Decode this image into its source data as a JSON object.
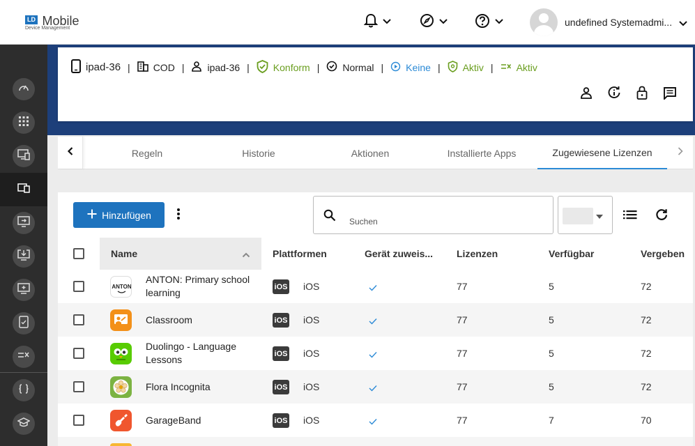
{
  "header": {
    "logo_badge": "LD",
    "logo_title": "Mobile",
    "logo_subtitle": "Device Management",
    "user_name": "undefined Systemadmi..."
  },
  "device": {
    "name": "ipad-36",
    "ownership": "COD",
    "user": "ipad-36",
    "compliance": "Konform",
    "mode": "Normal",
    "action": "Keine",
    "status1": "Aktiv",
    "status2": "Aktiv"
  },
  "tabs": [
    {
      "label": "Regeln"
    },
    {
      "label": "Historie"
    },
    {
      "label": "Aktionen"
    },
    {
      "label": "Installierte Apps"
    },
    {
      "label": "Zugewiesene Lizenzen"
    }
  ],
  "toolbar": {
    "add_label": "Hinzufügen",
    "search_placeholder": "Suchen"
  },
  "table": {
    "columns": [
      "Name",
      "Plattformen",
      "Gerät zuweis...",
      "Lizenzen",
      "Verfügbar",
      "Vergeben"
    ],
    "rows": [
      {
        "name": "ANTON: Primary school learning",
        "platform": "iOS",
        "platform_badge": "iOS",
        "device_assign": true,
        "licenses": "77",
        "available": "5",
        "assigned": "72"
      },
      {
        "name": "Classroom",
        "platform": "iOS",
        "platform_badge": "iOS",
        "device_assign": true,
        "licenses": "77",
        "available": "5",
        "assigned": "72"
      },
      {
        "name": "Duolingo - Language Lessons",
        "platform": "iOS",
        "platform_badge": "iOS",
        "device_assign": true,
        "licenses": "77",
        "available": "5",
        "assigned": "72"
      },
      {
        "name": "Flora Incognita",
        "platform": "iOS",
        "platform_badge": "iOS",
        "device_assign": true,
        "licenses": "77",
        "available": "5",
        "assigned": "72"
      },
      {
        "name": "GarageBand",
        "platform": "iOS",
        "platform_badge": "iOS",
        "device_assign": true,
        "licenses": "77",
        "available": "7",
        "assigned": "70"
      }
    ]
  },
  "app_icons": {
    "anton": {
      "text": "ANTON"
    }
  },
  "colors": {
    "accent": "#1e73be",
    "tab_underline": "#2b8ad6",
    "compliant_green": "#6a9e1f",
    "sidebar": "#2d2d2d",
    "header_band": "#1d3f7a"
  }
}
